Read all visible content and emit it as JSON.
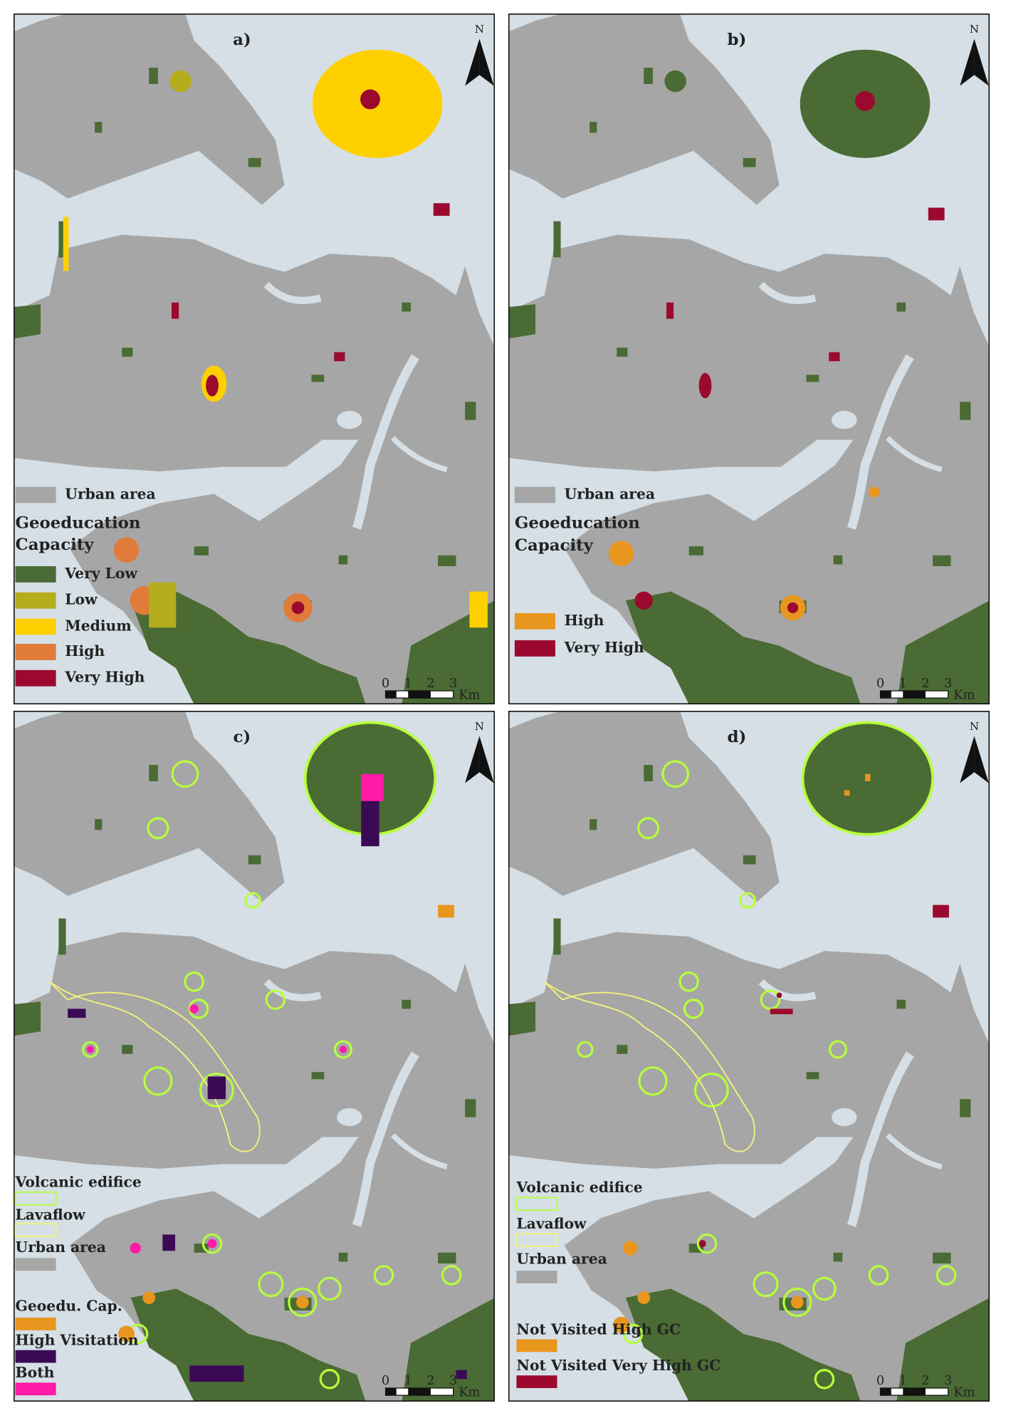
{
  "figure": {
    "panels": [
      {
        "label": "a)",
        "north": "N",
        "scale_ticks": [
          0,
          1,
          2,
          3
        ],
        "scale_unit": "Km",
        "legend": [
          {
            "label": "Urban area",
            "color": "#a6a6a6"
          },
          {
            "label": "Geoeducation"
          },
          {
            "label": "Capacity"
          },
          {
            "label": "Very Low",
            "color": "#4a6b34"
          },
          {
            "label": "Low",
            "color": "#b5ad1c"
          },
          {
            "label": "Medium",
            "color": "#ffd000"
          },
          {
            "label": "High",
            "color": "#e07b39"
          },
          {
            "label": "Very High",
            "color": "#9b0a2e"
          }
        ]
      },
      {
        "label": "b)",
        "north": "N",
        "scale_ticks": [
          0,
          1,
          2,
          3
        ],
        "scale_unit": "Km",
        "legend": [
          {
            "label": "Urban area",
            "color": "#a6a6a6"
          },
          {
            "label": "Geoeducation"
          },
          {
            "label": "Capacity"
          },
          {
            "label": "High",
            "color": "#e8961e"
          },
          {
            "label": "Very High",
            "color": "#9b0a2e"
          }
        ]
      },
      {
        "label": "c)",
        "north": "N",
        "scale_ticks": [
          0,
          1,
          2,
          3
        ],
        "scale_unit": "Km",
        "legend": [
          {
            "label": "Volcanic edifice",
            "color": "#b7ff3c",
            "outline": true
          },
          {
            "label": "Lavaflow",
            "color": "#f2f27a",
            "outline": true
          },
          {
            "label": "Urban area",
            "color": "#a6a6a6"
          },
          {
            "label": "Geoedu. Cap.",
            "color": "#e8961e"
          },
          {
            "label": "High Visitation",
            "color": "#3b0a55"
          },
          {
            "label": "Both",
            "color": "#ff1aa8"
          }
        ]
      },
      {
        "label": "d)",
        "north": "N",
        "scale_ticks": [
          0,
          1,
          2,
          3
        ],
        "scale_unit": "Km",
        "legend": [
          {
            "label": "Volcanic edifice",
            "color": "#b7ff3c",
            "outline": true
          },
          {
            "label": "Lavaflow",
            "color": "#f2f27a",
            "outline": true
          },
          {
            "label": "Urban area",
            "color": "#a6a6a6"
          },
          {
            "label": "Not Visited High GC",
            "color": "#e8961e"
          },
          {
            "label": "Not Visited Very High GC",
            "color": "#9b0a2e"
          }
        ]
      }
    ]
  }
}
